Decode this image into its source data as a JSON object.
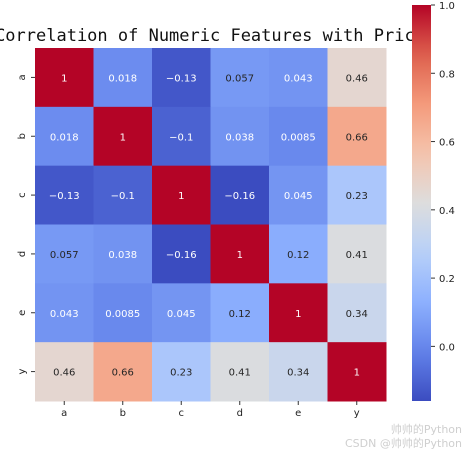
{
  "chart_data": {
    "type": "heatmap",
    "title": "Correlation of Numeric Features with Price",
    "x_categories": [
      "a",
      "b",
      "c",
      "d",
      "e",
      "y"
    ],
    "y_categories": [
      "a",
      "b",
      "c",
      "d",
      "e",
      "y"
    ],
    "values": [
      [
        1,
        0.018,
        -0.13,
        0.057,
        0.043,
        0.46
      ],
      [
        0.018,
        1,
        -0.1,
        0.038,
        0.0085,
        0.66
      ],
      [
        -0.13,
        -0.1,
        1,
        -0.16,
        0.045,
        0.23
      ],
      [
        0.057,
        0.038,
        -0.16,
        1,
        0.12,
        0.41
      ],
      [
        0.043,
        0.0085,
        0.045,
        0.12,
        1,
        0.34
      ],
      [
        0.46,
        0.66,
        0.23,
        0.41,
        0.34,
        1
      ]
    ],
    "labels": [
      [
        "1",
        "0.018",
        "−0.13",
        "0.057",
        "0.043",
        "0.46"
      ],
      [
        "0.018",
        "1",
        "−0.1",
        "0.038",
        "0.0085",
        "0.66"
      ],
      [
        "−0.13",
        "−0.1",
        "1",
        "−0.16",
        "0.045",
        "0.23"
      ],
      [
        "0.057",
        "0.038",
        "−0.16",
        "1",
        "0.12",
        "0.41"
      ],
      [
        "0.043",
        "0.0085",
        "0.045",
        "0.12",
        "1",
        "0.34"
      ],
      [
        "0.46",
        "0.66",
        "0.23",
        "0.41",
        "0.34",
        "1"
      ]
    ],
    "colormap": "coolwarm",
    "vmin": -0.16,
    "vmax": 1.0,
    "colorbar_ticks": [
      1.0,
      0.8,
      0.6,
      0.4,
      0.2,
      0.0
    ],
    "colorbar_tick_labels": [
      "1.0",
      "0.8",
      "0.6",
      "0.4",
      "0.2",
      "0.0"
    ]
  },
  "watermark": {
    "line1": "帅帅的Python",
    "line2": "CSDN @帅帅的Python"
  }
}
